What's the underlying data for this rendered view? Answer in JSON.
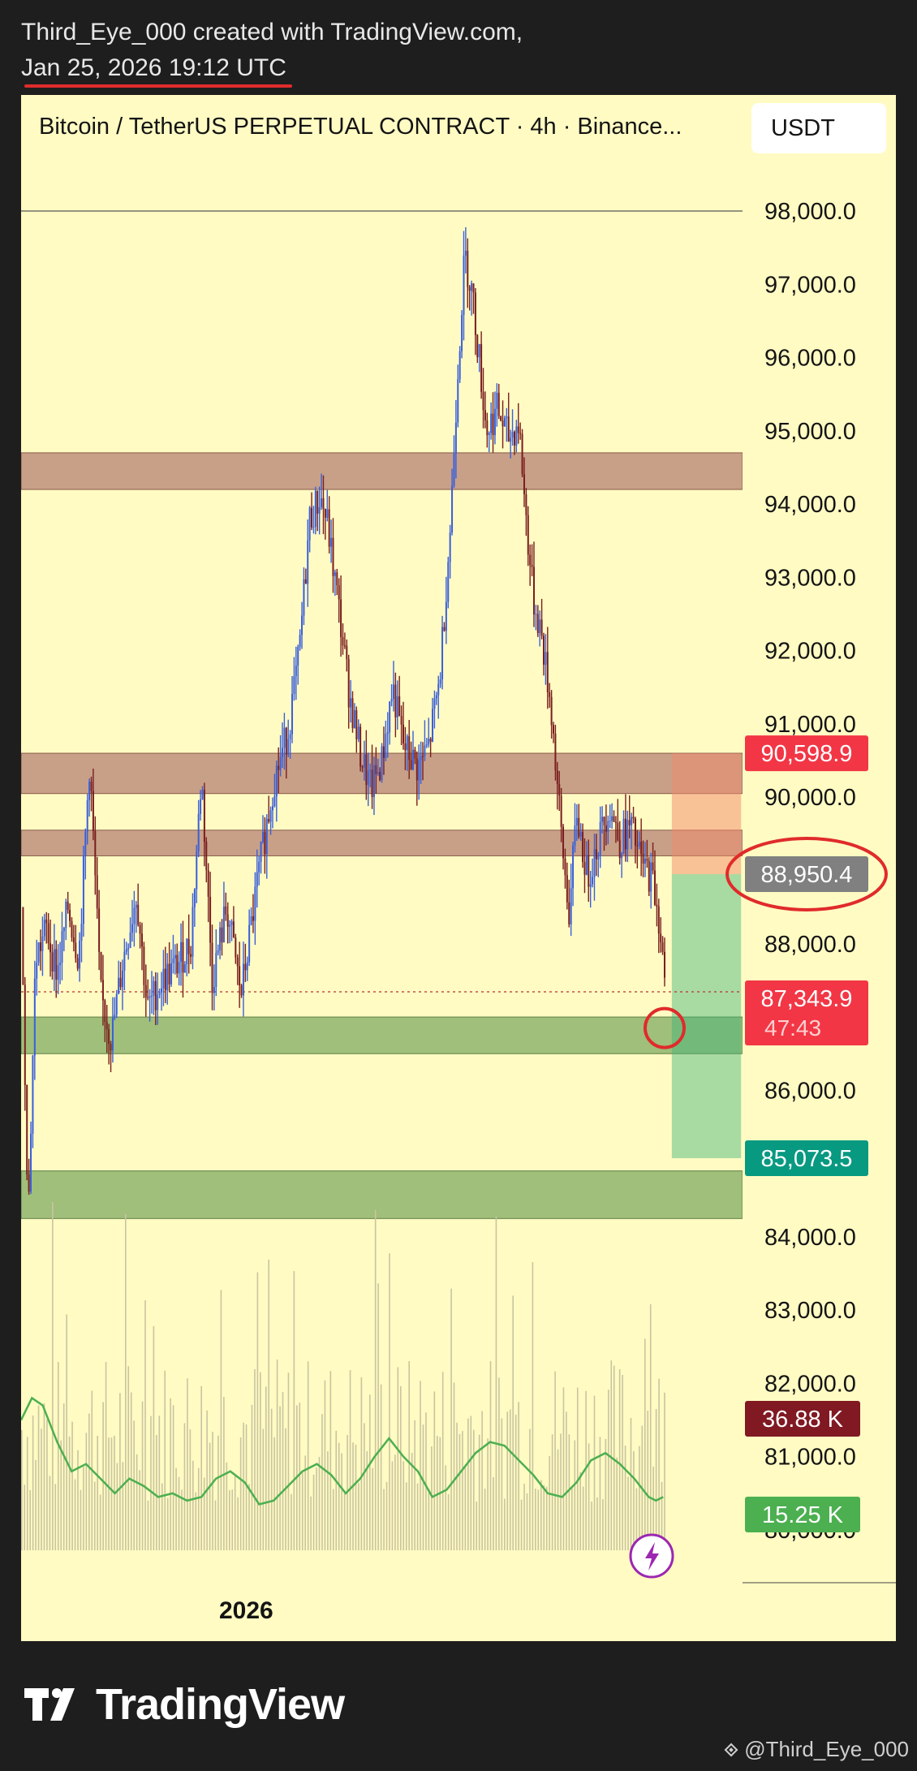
{
  "header": {
    "attribution": "Third_Eye_000 created with TradingView.com,",
    "datetime": "Jan 25, 2026 19:12 UTC"
  },
  "chart_header": {
    "title": "Bitcoin / TetherUS PERPETUAL CONTRACT · 4h · Binance...",
    "currency_button": "USDT"
  },
  "footer": {
    "brand": "TradingView",
    "brand_icon": "tradingview-logo-icon",
    "watermark": "@Third_Eye_000",
    "watermark_icon": "binance-diamond-icon"
  },
  "colors": {
    "background": "#fffbc3",
    "candle_up": "#3a5fd8",
    "candle_down": "#7a1e1e",
    "resistance_zone": "#c8a088",
    "support_zone": "#9fbf7a",
    "volume_ma": "#4caf50",
    "tag_red": "#f23645",
    "tag_gray": "#808080",
    "tag_teal": "#089981",
    "tag_darkred": "#801922",
    "tag_green": "#4caf50"
  },
  "chart_data": {
    "type": "candlestick",
    "timeframe": "4h",
    "symbol": "Bitcoin / TetherUS PERPETUAL CONTRACT",
    "exchange": "Binance",
    "ylim": [
      79700,
      99000
    ],
    "y_ticks": [
      {
        "label": "98,000.0",
        "value": 98000
      },
      {
        "label": "97,000.0",
        "value": 97000
      },
      {
        "label": "96,000.0",
        "value": 96000
      },
      {
        "label": "95,000.0",
        "value": 95000
      },
      {
        "label": "94,000.0",
        "value": 94000
      },
      {
        "label": "93,000.0",
        "value": 93000
      },
      {
        "label": "92,000.0",
        "value": 92000
      },
      {
        "label": "91,000.0",
        "value": 91000
      },
      {
        "label": "90,000.0",
        "value": 90000
      },
      {
        "label": "88,000.0",
        "value": 88000
      },
      {
        "label": "86,000.0",
        "value": 86000
      },
      {
        "label": "84,000.0",
        "value": 84000
      },
      {
        "label": "83,000.0",
        "value": 83000
      },
      {
        "label": "82,000.0",
        "value": 82000
      },
      {
        "label": "81,000.0",
        "value": 81000
      },
      {
        "label": "80,000.0",
        "value": 80000
      }
    ],
    "x_ticks": [
      {
        "label": "2026",
        "position": 0.317
      }
    ],
    "horizontal_line": 98000,
    "zones": [
      {
        "kind": "resistance",
        "top": 94700,
        "bottom": 94200
      },
      {
        "kind": "resistance",
        "top": 90600,
        "bottom": 90050
      },
      {
        "kind": "resistance",
        "top": 89550,
        "bottom": 89200
      },
      {
        "kind": "support",
        "top": 87000,
        "bottom": 86500
      },
      {
        "kind": "support",
        "top": 84900,
        "bottom": 84250
      }
    ],
    "position": {
      "entry": 88950.4,
      "stop": 90598.9,
      "target": 85073.5
    },
    "current_price": 87343.9,
    "dotted_level": 87343.9,
    "price_tags": [
      {
        "label": "90,598.9",
        "value": 90598.9,
        "color": "tag_red"
      },
      {
        "label": "88,950.4",
        "value": 88950.4,
        "color": "tag_gray"
      },
      {
        "label": "87,343.9",
        "value": 87343.9,
        "color": "tag_red",
        "countdown": "47:43"
      },
      {
        "label": "85,073.5",
        "value": 85073.5,
        "color": "tag_teal"
      },
      {
        "label": "36.88 K",
        "color": "tag_darkred",
        "kind": "volume"
      },
      {
        "label": "15.25 K",
        "color": "tag_green",
        "kind": "volume_ma"
      }
    ],
    "price_path": [
      [
        0.0,
        88500
      ],
      [
        0.01,
        84300
      ],
      [
        0.02,
        87800
      ],
      [
        0.035,
        88200
      ],
      [
        0.05,
        87600
      ],
      [
        0.065,
        88500
      ],
      [
        0.08,
        87800
      ],
      [
        0.095,
        90500
      ],
      [
        0.11,
        87300
      ],
      [
        0.125,
        86700
      ],
      [
        0.14,
        87700
      ],
      [
        0.16,
        88700
      ],
      [
        0.175,
        87100
      ],
      [
        0.195,
        87500
      ],
      [
        0.215,
        87700
      ],
      [
        0.235,
        88000
      ],
      [
        0.25,
        90300
      ],
      [
        0.265,
        87500
      ],
      [
        0.285,
        88500
      ],
      [
        0.305,
        87300
      ],
      [
        0.33,
        89000
      ],
      [
        0.35,
        90200
      ],
      [
        0.37,
        90900
      ],
      [
        0.385,
        91900
      ],
      [
        0.4,
        93800
      ],
      [
        0.415,
        94100
      ],
      [
        0.425,
        93700
      ],
      [
        0.44,
        92600
      ],
      [
        0.455,
        91400
      ],
      [
        0.47,
        90600
      ],
      [
        0.485,
        90100
      ],
      [
        0.5,
        90500
      ],
      [
        0.515,
        91500
      ],
      [
        0.53,
        90700
      ],
      [
        0.55,
        90400
      ],
      [
        0.565,
        90700
      ],
      [
        0.58,
        91600
      ],
      [
        0.595,
        93700
      ],
      [
        0.605,
        95800
      ],
      [
        0.615,
        97400
      ],
      [
        0.625,
        96900
      ],
      [
        0.635,
        96000
      ],
      [
        0.645,
        95000
      ],
      [
        0.66,
        95300
      ],
      [
        0.675,
        94900
      ],
      [
        0.69,
        95100
      ],
      [
        0.7,
        93800
      ],
      [
        0.71,
        92700
      ],
      [
        0.72,
        92300
      ],
      [
        0.735,
        91200
      ],
      [
        0.75,
        89300
      ],
      [
        0.76,
        88400
      ],
      [
        0.77,
        89800
      ],
      [
        0.785,
        88900
      ],
      [
        0.8,
        89400
      ],
      [
        0.815,
        89900
      ],
      [
        0.83,
        89400
      ],
      [
        0.845,
        89600
      ],
      [
        0.86,
        89100
      ],
      [
        0.875,
        88900
      ],
      [
        0.885,
        88300
      ],
      [
        0.892,
        87400
      ]
    ],
    "volume_ma": [
      [
        0.0,
        81500
      ],
      [
        0.015,
        81800
      ],
      [
        0.03,
        81700
      ],
      [
        0.05,
        81200
      ],
      [
        0.07,
        80800
      ],
      [
        0.09,
        80900
      ],
      [
        0.11,
        80700
      ],
      [
        0.13,
        80500
      ],
      [
        0.15,
        80700
      ],
      [
        0.17,
        80600
      ],
      [
        0.19,
        80450
      ],
      [
        0.21,
        80500
      ],
      [
        0.23,
        80400
      ],
      [
        0.25,
        80450
      ],
      [
        0.27,
        80700
      ],
      [
        0.29,
        80800
      ],
      [
        0.31,
        80650
      ],
      [
        0.33,
        80350
      ],
      [
        0.35,
        80400
      ],
      [
        0.37,
        80600
      ],
      [
        0.39,
        80800
      ],
      [
        0.41,
        80900
      ],
      [
        0.43,
        80750
      ],
      [
        0.45,
        80500
      ],
      [
        0.47,
        80700
      ],
      [
        0.49,
        81000
      ],
      [
        0.51,
        81250
      ],
      [
        0.53,
        81000
      ],
      [
        0.55,
        80800
      ],
      [
        0.57,
        80450
      ],
      [
        0.59,
        80550
      ],
      [
        0.61,
        80800
      ],
      [
        0.63,
        81050
      ],
      [
        0.65,
        81200
      ],
      [
        0.67,
        81150
      ],
      [
        0.69,
        80950
      ],
      [
        0.71,
        80750
      ],
      [
        0.73,
        80500
      ],
      [
        0.75,
        80450
      ],
      [
        0.77,
        80650
      ],
      [
        0.79,
        80950
      ],
      [
        0.81,
        81050
      ],
      [
        0.83,
        80900
      ],
      [
        0.85,
        80700
      ],
      [
        0.87,
        80450
      ],
      [
        0.88,
        80400
      ],
      [
        0.89,
        80450
      ]
    ]
  }
}
